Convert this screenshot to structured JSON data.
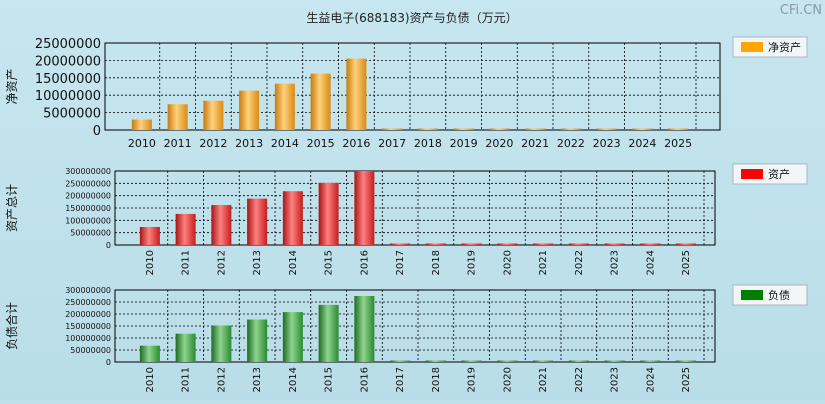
{
  "title": "生益电子(688183)资产与负债（万元）",
  "watermark": "CFi.CN",
  "colors": {
    "background": "#bde0ea",
    "net_assets": "#f0a020",
    "assets": "#e02828",
    "liabilities": "#1f8a2a",
    "legend_net_assets": "#ffa500",
    "legend_assets": "#ff0000",
    "legend_liabilities": "#008000"
  },
  "chart_data": [
    {
      "type": "bar",
      "ylabel": "净资产",
      "legend": "净资产",
      "categories": [
        "2010",
        "2011",
        "2012",
        "2013",
        "2014",
        "2015",
        "2016",
        "2017",
        "2018",
        "2019",
        "2020",
        "2021",
        "2022",
        "2023",
        "2024",
        "2025"
      ],
      "values": [
        3000000,
        7400000,
        8400000,
        11300000,
        13300000,
        16200000,
        20500000,
        0,
        0,
        0,
        0,
        0,
        0,
        0,
        0,
        0
      ],
      "ylim": [
        0,
        25000000
      ],
      "yticks": [
        "25000000",
        "20000000",
        "15000000",
        "10000000",
        "5000000",
        "0"
      ],
      "grid": true,
      "legend_position": "right"
    },
    {
      "type": "bar",
      "ylabel": "资产总计",
      "legend": "资产",
      "categories": [
        "2010",
        "2011",
        "2012",
        "2013",
        "2014",
        "2015",
        "2016",
        "2017",
        "2018",
        "2019",
        "2020",
        "2021",
        "2022",
        "2023",
        "2024",
        "2025"
      ],
      "values": [
        73000000,
        126000000,
        162000000,
        188000000,
        218000000,
        252000000,
        300000000,
        0,
        0,
        0,
        0,
        0,
        0,
        0,
        0,
        0
      ],
      "ylim": [
        0,
        300000000
      ],
      "yticks": [
        "300000000",
        "250000000",
        "200000000",
        "150000000",
        "100000000",
        "50000000",
        "0"
      ],
      "grid": true,
      "legend_position": "right"
    },
    {
      "type": "bar",
      "ylabel": "负债合计",
      "legend": "负债",
      "categories": [
        "2010",
        "2011",
        "2012",
        "2013",
        "2014",
        "2015",
        "2016",
        "2017",
        "2018",
        "2019",
        "2020",
        "2021",
        "2022",
        "2023",
        "2024",
        "2025"
      ],
      "values": [
        68000000,
        118000000,
        152000000,
        177000000,
        208000000,
        238000000,
        275000000,
        0,
        0,
        0,
        0,
        0,
        0,
        0,
        0,
        0
      ],
      "ylim": [
        0,
        300000000
      ],
      "yticks": [
        "300000000",
        "250000000",
        "200000000",
        "150000000",
        "100000000",
        "50000000",
        "0"
      ],
      "grid": true,
      "legend_position": "right"
    }
  ]
}
